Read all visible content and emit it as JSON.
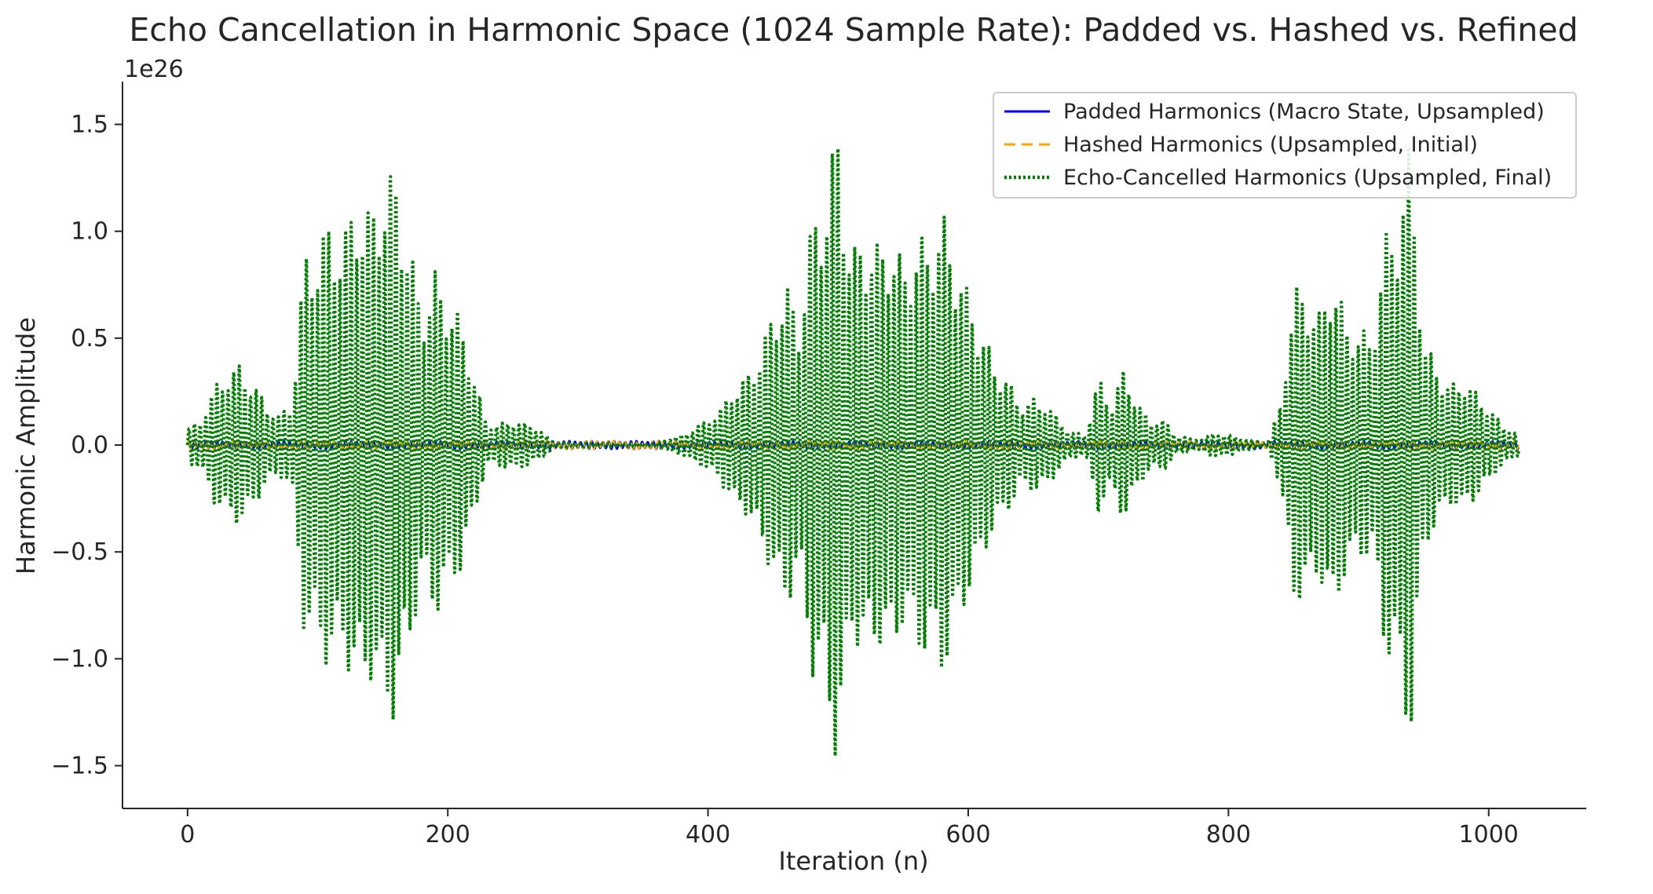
{
  "chart_data": {
    "type": "line",
    "title": "Echo Cancellation in Harmonic Space (1024 Sample Rate): Padded vs. Hashed vs. Refined",
    "xlabel": "Iteration (n)",
    "ylabel": "Harmonic Amplitude",
    "y_offset_label": "1e26",
    "xlim": [
      -50,
      1075
    ],
    "ylim": [
      -1.7,
      1.7
    ],
    "y_unit": "1e26",
    "x_ticks": [
      0,
      200,
      400,
      600,
      800,
      1000
    ],
    "x_tick_labels": [
      "0",
      "200",
      "400",
      "600",
      "800",
      "1000"
    ],
    "y_ticks": [
      -1.5,
      -1.0,
      -0.5,
      0.0,
      0.5,
      1.0,
      1.5
    ],
    "y_tick_labels": [
      "−1.5",
      "−1.0",
      "−0.5",
      "0.0",
      "0.5",
      "1.0",
      "1.5"
    ],
    "grid": false,
    "legend_position": "top-right",
    "series": [
      {
        "name": "Padded Harmonics (Macro State, Upsampled)",
        "color": "#0000ff",
        "style": "solid",
        "x_range": [
          0,
          1023
        ],
        "envelope_x": [
          0,
          300,
          400,
          700,
          800,
          1023
        ],
        "envelope_peak": [
          0.02,
          0.02,
          0.02,
          0.02,
          0.02,
          0.02
        ]
      },
      {
        "name": "Hashed Harmonics (Upsampled, Initial)",
        "color": "#ffa500",
        "style": "dashed",
        "x_range": [
          0,
          1023
        ],
        "envelope_x": [
          0,
          300,
          400,
          700,
          800,
          1023
        ],
        "envelope_peak": [
          0.02,
          0.02,
          0.02,
          0.02,
          0.02,
          0.02
        ]
      },
      {
        "name": "Echo-Cancelled Harmonics (Upsampled, Final)",
        "color": "#008000",
        "style": "dotted",
        "x_range": [
          0,
          1023
        ],
        "envelope_x": [
          0,
          10,
          20,
          30,
          40,
          50,
          60,
          70,
          80,
          90,
          100,
          110,
          120,
          130,
          140,
          150,
          160,
          170,
          180,
          190,
          200,
          210,
          220,
          230,
          240,
          250,
          260,
          270,
          280,
          290,
          360,
          380,
          400,
          410,
          420,
          430,
          440,
          450,
          460,
          470,
          480,
          490,
          500,
          510,
          520,
          530,
          540,
          550,
          560,
          570,
          580,
          590,
          600,
          610,
          620,
          630,
          640,
          650,
          660,
          670,
          680,
          690,
          700,
          710,
          720,
          730,
          740,
          750,
          760,
          770,
          780,
          790,
          800,
          810,
          820,
          830,
          840,
          850,
          860,
          870,
          880,
          890,
          900,
          910,
          920,
          930,
          940,
          950,
          960,
          970,
          980,
          990,
          1000,
          1010,
          1023
        ],
        "envelope_peak": [
          0.08,
          0.12,
          0.27,
          0.35,
          0.38,
          0.3,
          0.2,
          0.14,
          0.2,
          0.92,
          0.96,
          1.08,
          1.0,
          1.2,
          1.1,
          1.28,
          1.3,
          0.98,
          0.65,
          0.82,
          0.7,
          0.6,
          0.34,
          0.1,
          0.1,
          0.12,
          0.1,
          0.08,
          0.02,
          0.01,
          0.01,
          0.05,
          0.12,
          0.18,
          0.28,
          0.33,
          0.46,
          0.63,
          0.78,
          0.6,
          1.08,
          1.2,
          1.55,
          0.9,
          1.03,
          0.95,
          1.02,
          0.85,
          0.98,
          0.99,
          1.1,
          0.92,
          0.72,
          0.56,
          0.39,
          0.32,
          0.2,
          0.22,
          0.2,
          0.12,
          0.06,
          0.05,
          0.32,
          0.2,
          0.37,
          0.2,
          0.12,
          0.12,
          0.05,
          0.03,
          0.03,
          0.06,
          0.05,
          0.03,
          0.02,
          0.01,
          0.2,
          0.75,
          0.73,
          0.62,
          0.85,
          0.6,
          0.55,
          0.52,
          0.98,
          1.12,
          1.43,
          0.5,
          0.38,
          0.28,
          0.32,
          0.25,
          0.18,
          0.1,
          0.05
        ]
      }
    ]
  }
}
